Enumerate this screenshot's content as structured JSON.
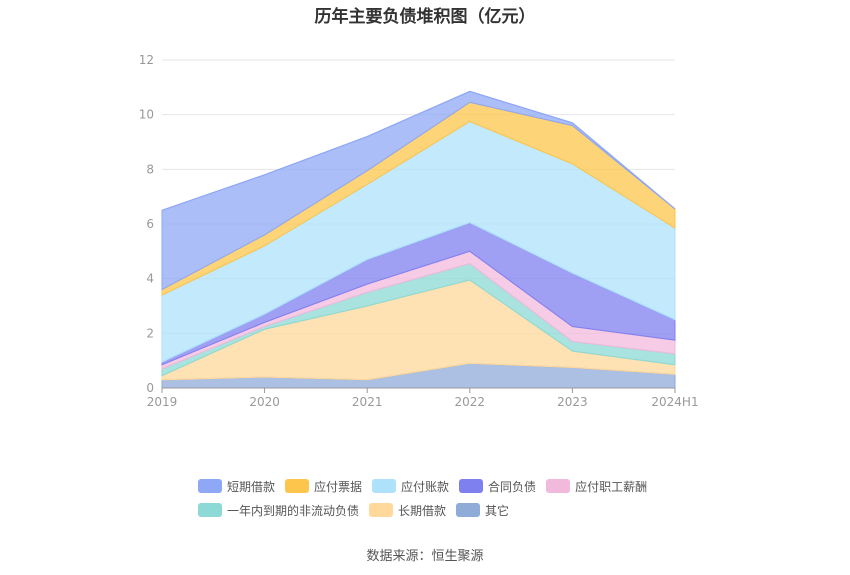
{
  "chart_data": {
    "type": "area",
    "title": "历年主要负债堆积图（亿元）",
    "categories": [
      "2019",
      "2020",
      "2021",
      "2022",
      "2023",
      "2024H1"
    ],
    "ylim": [
      0,
      12
    ],
    "yticks": [
      0,
      2,
      4,
      6,
      8,
      10,
      12
    ],
    "grid": true,
    "legend_position": "bottom",
    "series": [
      {
        "name": "其它",
        "color": "#8fabd8",
        "values": [
          0.3,
          0.4,
          0.3,
          0.9,
          0.75,
          0.5
        ]
      },
      {
        "name": "长期借款",
        "color": "#ffd89b",
        "values": [
          0.15,
          1.75,
          2.7,
          3.05,
          0.6,
          0.35
        ]
      },
      {
        "name": "一年内到期的非流动负债",
        "color": "#8cd9d6",
        "values": [
          0.25,
          0.1,
          0.5,
          0.6,
          0.35,
          0.4
        ]
      },
      {
        "name": "应付职工薪酬",
        "color": "#f1b9dc",
        "values": [
          0.15,
          0.15,
          0.3,
          0.45,
          0.55,
          0.5
        ]
      },
      {
        "name": "合同负债",
        "color": "#7f80f0",
        "values": [
          0.1,
          0.3,
          0.9,
          1.05,
          1.95,
          0.75
        ]
      },
      {
        "name": "应付账款",
        "color": "#aee2fb",
        "values": [
          2.45,
          2.5,
          2.75,
          3.7,
          4.0,
          3.35
        ]
      },
      {
        "name": "应付票据",
        "color": "#fdc54b",
        "values": [
          0.2,
          0.4,
          0.5,
          0.7,
          1.4,
          0.7
        ]
      },
      {
        "name": "短期借款",
        "color": "#8fa8f6",
        "values": [
          2.9,
          2.2,
          1.25,
          0.4,
          0.1,
          0.0
        ]
      }
    ],
    "legend_order": [
      "短期借款",
      "应付票据",
      "应付账款",
      "合同负债",
      "应付职工薪酬",
      "一年内到期的非流动负债",
      "长期借款",
      "其它"
    ]
  },
  "source": "数据来源：恒生聚源"
}
